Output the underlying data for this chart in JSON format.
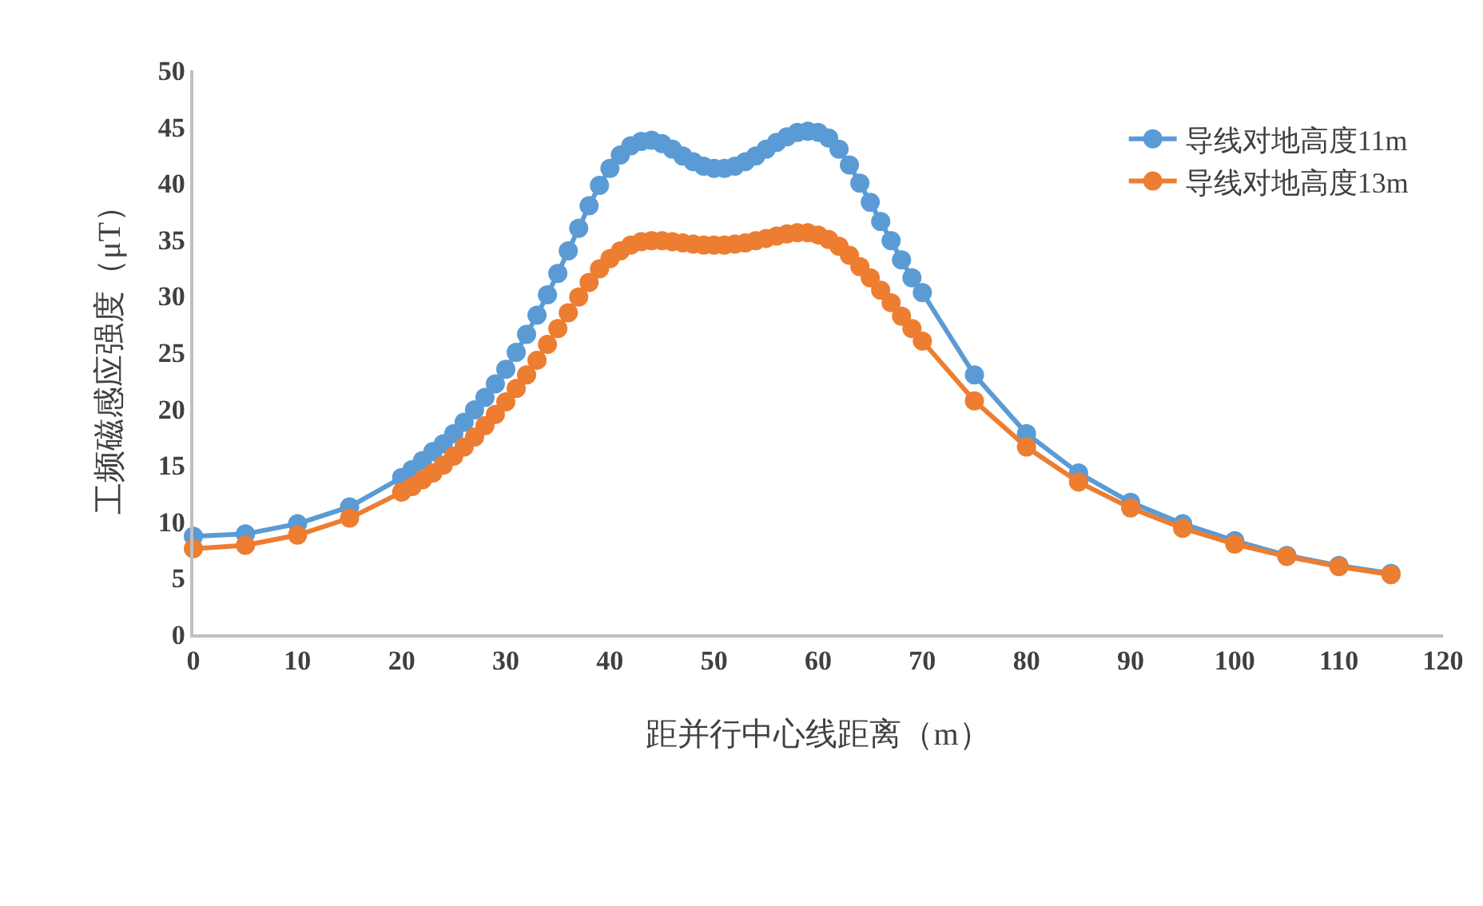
{
  "chart_data": {
    "type": "line",
    "xlabel": "距并行中心线距离（m）",
    "ylabel": "工频磁感应强度（μT）",
    "x": [
      0,
      5,
      10,
      15,
      20,
      21,
      22,
      23,
      24,
      25,
      26,
      27,
      28,
      29,
      30,
      31,
      32,
      33,
      34,
      35,
      36,
      37,
      38,
      39,
      40,
      41,
      42,
      43,
      44,
      45,
      46,
      47,
      48,
      49,
      50,
      51,
      52,
      53,
      54,
      55,
      56,
      57,
      58,
      59,
      60,
      61,
      62,
      63,
      64,
      65,
      66,
      67,
      68,
      69,
      70,
      75,
      80,
      85,
      90,
      95,
      100,
      105,
      110,
      115
    ],
    "series": [
      {
        "name": "导线对地高度11m",
        "color": "#5b9bd5",
        "values": [
          8.7,
          8.9,
          9.8,
          11.3,
          13.9,
          14.6,
          15.4,
          16.2,
          16.9,
          17.8,
          18.8,
          19.9,
          21.0,
          22.2,
          23.5,
          25.0,
          26.6,
          28.3,
          30.1,
          32.0,
          34.0,
          36.0,
          38.0,
          39.8,
          41.3,
          42.5,
          43.3,
          43.7,
          43.8,
          43.5,
          43.0,
          42.4,
          41.9,
          41.5,
          41.3,
          41.3,
          41.5,
          41.9,
          42.4,
          43.0,
          43.6,
          44.1,
          44.5,
          44.6,
          44.5,
          44.0,
          43.0,
          41.6,
          40.0,
          38.3,
          36.6,
          34.9,
          33.2,
          31.6,
          30.3,
          23.0,
          17.8,
          14.3,
          11.7,
          9.8,
          8.3,
          7.0,
          6.1,
          5.4
        ]
      },
      {
        "name": "导线对地高度13m",
        "color": "#ed7d31",
        "values": [
          7.6,
          7.9,
          8.8,
          10.3,
          12.6,
          13.1,
          13.7,
          14.3,
          15.0,
          15.8,
          16.6,
          17.5,
          18.5,
          19.5,
          20.6,
          21.8,
          23.0,
          24.3,
          25.7,
          27.1,
          28.5,
          29.9,
          31.2,
          32.4,
          33.3,
          34.0,
          34.5,
          34.8,
          34.9,
          34.9,
          34.8,
          34.7,
          34.6,
          34.5,
          34.5,
          34.5,
          34.6,
          34.7,
          34.9,
          35.1,
          35.3,
          35.5,
          35.6,
          35.6,
          35.4,
          35.0,
          34.4,
          33.6,
          32.6,
          31.6,
          30.5,
          29.4,
          28.2,
          27.1,
          26.0,
          20.7,
          16.6,
          13.5,
          11.2,
          9.4,
          8.0,
          6.9,
          6.0,
          5.3
        ]
      }
    ],
    "xlim": [
      0,
      120
    ],
    "xticks": [
      0,
      10,
      20,
      30,
      40,
      50,
      60,
      70,
      80,
      90,
      100,
      110,
      120
    ],
    "ylim": [
      0,
      50
    ],
    "yticks": [
      0,
      5,
      10,
      15,
      20,
      25,
      30,
      35,
      40,
      45,
      50
    ],
    "grid": false,
    "legend": "top right",
    "marker": "circle",
    "line_style": "solid"
  }
}
